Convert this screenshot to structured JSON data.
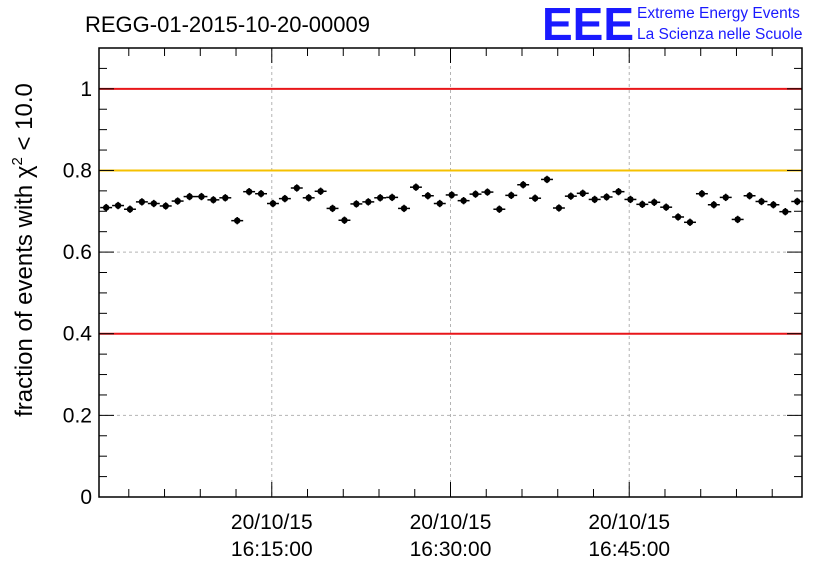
{
  "chart_data": {
    "type": "scatter",
    "title": "REGG-01-2015-10-20-00009",
    "ylabel_prefix": "fraction of events with ",
    "ylabel_symbol": "χ",
    "ylabel_sup": "2",
    "ylabel_suffix": " < 10.0",
    "xlim_minutes": [
      0,
      118
    ],
    "ylim": [
      0,
      1.1
    ],
    "grid": true,
    "y_ticks": [
      {
        "v": 0,
        "label": "0"
      },
      {
        "v": 0.2,
        "label": "0.2"
      },
      {
        "v": 0.4,
        "label": "0.4"
      },
      {
        "v": 0.6,
        "label": "0.6"
      },
      {
        "v": 0.8,
        "label": "0.8"
      },
      {
        "v": 1.0,
        "label": "1"
      }
    ],
    "x_ticks": [
      {
        "m": 29,
        "date": "20/10/15",
        "time": "16:15:00"
      },
      {
        "m": 59,
        "date": "20/10/15",
        "time": "16:30:00"
      },
      {
        "m": 89,
        "date": "20/10/15",
        "time": "16:45:00"
      }
    ],
    "reference_lines": [
      {
        "y": 1.0,
        "color": "#e8161a"
      },
      {
        "y": 0.8,
        "color": "#f5c000"
      },
      {
        "y": 0.4,
        "color": "#e8161a"
      }
    ],
    "series": [
      {
        "x": [
          1.2,
          3.2,
          5.2,
          7.2,
          9.2,
          11.2,
          13.2,
          15.2,
          17.2,
          19.2,
          21.2,
          23.2,
          25.2,
          27.2,
          29.2,
          31.2,
          33.2,
          35.2,
          37.2,
          39.2,
          41.2,
          43.2,
          45.2,
          47.2,
          49.2,
          51.2,
          53.2,
          55.2,
          57.2,
          59.2,
          61.2,
          63.2,
          65.2,
          67.2,
          69.2,
          71.2,
          73.2,
          75.2,
          77.2,
          79.2,
          81.2,
          83.2,
          85.2,
          87.2,
          89.2,
          91.2,
          93.2,
          95.2,
          97.2,
          99.2,
          101.2,
          103.2,
          105.2,
          107.2,
          109.2,
          111.2,
          113.2,
          115.2,
          117.2
        ],
        "y": [
          0.709,
          0.714,
          0.705,
          0.723,
          0.719,
          0.713,
          0.725,
          0.736,
          0.736,
          0.728,
          0.733,
          0.677,
          0.748,
          0.743,
          0.719,
          0.731,
          0.757,
          0.733,
          0.749,
          0.707,
          0.678,
          0.718,
          0.723,
          0.733,
          0.734,
          0.707,
          0.759,
          0.738,
          0.719,
          0.74,
          0.726,
          0.742,
          0.747,
          0.705,
          0.739,
          0.765,
          0.732,
          0.778,
          0.708,
          0.737,
          0.744,
          0.729,
          0.735,
          0.748,
          0.729,
          0.717,
          0.722,
          0.71,
          0.686,
          0.673,
          0.743,
          0.716,
          0.734,
          0.68,
          0.738,
          0.724,
          0.716,
          0.699,
          0.724
        ],
        "yerr": 0.009,
        "xerr_minutes": 1.0,
        "color": "#000000"
      }
    ]
  },
  "logo": {
    "mark": "EEE",
    "line1": "Extreme Energy Events",
    "line2": "La Scienza nelle Scuole"
  }
}
